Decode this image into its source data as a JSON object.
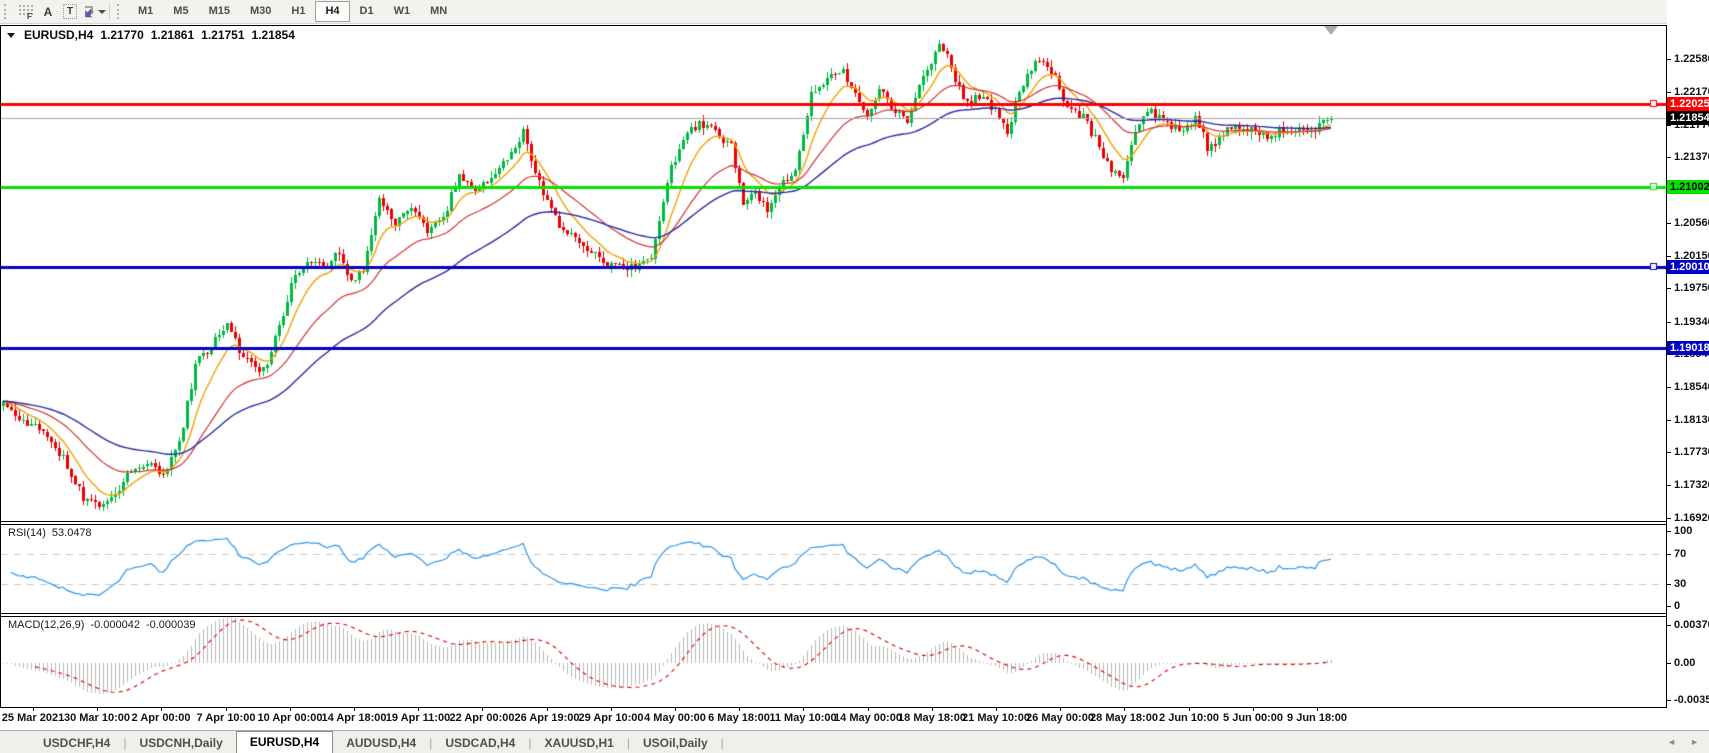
{
  "toolbar": {
    "tools": [
      {
        "id": "fibonacci",
        "glyph": "F"
      },
      {
        "id": "text",
        "glyph": "A"
      },
      {
        "id": "text-label",
        "glyph": "T"
      },
      {
        "id": "arrows",
        "glyph": "arrows"
      }
    ],
    "timeframes": [
      "M1",
      "M5",
      "M15",
      "M30",
      "H1",
      "H4",
      "D1",
      "W1",
      "MN"
    ],
    "active_timeframe": "H4"
  },
  "chart_header": {
    "symbol": "EURUSD,H4",
    "open": "1.21770",
    "high": "1.21861",
    "low": "1.21751",
    "close": "1.21854"
  },
  "price_axis": {
    "ticks": [
      "1.22580",
      "1.22170",
      "1.21770",
      "1.21370",
      "1.20960",
      "1.20560",
      "1.20150",
      "1.19750",
      "1.19340",
      "1.18940",
      "1.18540",
      "1.18130",
      "1.17730",
      "1.17320",
      "1.16920"
    ]
  },
  "tabs": {
    "items": [
      "USDCHF,H4",
      "USDCNH,Daily",
      "EURUSD,H4",
      "AUDUSD,H4",
      "USDCAD,H4",
      "XAUUSD,H1",
      "USOil,Daily"
    ],
    "active": "EURUSD,H4",
    "scroll_left": "◄",
    "scroll_right": "►"
  },
  "chart_data": {
    "type": "candlestick",
    "symbol": "EURUSD",
    "period": "H4",
    "title": "EURUSD,H4 1.21770 1.21861 1.21751 1.21854",
    "y_range": {
      "top": 1.2299,
      "bottom": 1.1688
    },
    "x_labels": [
      "25 Mar 2021",
      "30 Mar 10:00",
      "2 Apr 00:00",
      "7 Apr 10:00",
      "10 Apr 00:00",
      "14 Apr 18:00",
      "19 Apr 11:00",
      "22 Apr 00:00",
      "26 Apr 19:00",
      "29 Apr 10:00",
      "4 May 00:00",
      "6 May 18:00",
      "11 May 10:00",
      "14 May 00:00",
      "18 May 18:00",
      "21 May 10:00",
      "26 May 00:00",
      "28 May 18:00",
      "2 Jun 10:00",
      "5 Jun 00:00",
      "9 Jun 18:00"
    ],
    "bars": 333,
    "bar_spacing": 4,
    "first_bar_x": 2,
    "seed": 97,
    "close_noise": 0.00055,
    "wick_noise": 0.00085,
    "up_color": "#00B943",
    "down_color": "#ED0000",
    "price_path": [
      [
        0,
        1.1832
      ],
      [
        5,
        1.1808
      ],
      [
        10,
        1.18
      ],
      [
        15,
        1.1765
      ],
      [
        20,
        1.1716
      ],
      [
        24,
        1.1703
      ],
      [
        28,
        1.1722
      ],
      [
        32,
        1.1752
      ],
      [
        36,
        1.1758
      ],
      [
        40,
        1.1744
      ],
      [
        44,
        1.1782
      ],
      [
        48,
        1.188
      ],
      [
        53,
        1.1912
      ],
      [
        56,
        1.193
      ],
      [
        60,
        1.1888
      ],
      [
        65,
        1.1873
      ],
      [
        68,
        1.1912
      ],
      [
        72,
        1.1978
      ],
      [
        76,
        1.2012
      ],
      [
        80,
        1.2
      ],
      [
        84,
        1.2018
      ],
      [
        87,
        1.198
      ],
      [
        90,
        1.1998
      ],
      [
        94,
        1.2085
      ],
      [
        98,
        1.2058
      ],
      [
        102,
        1.2075
      ],
      [
        106,
        1.2046
      ],
      [
        110,
        1.2062
      ],
      [
        114,
        1.2118
      ],
      [
        118,
        1.2094
      ],
      [
        122,
        1.2108
      ],
      [
        126,
        1.2136
      ],
      [
        130,
        1.217
      ],
      [
        133,
        1.212
      ],
      [
        136,
        1.2082
      ],
      [
        140,
        1.2046
      ],
      [
        146,
        1.2022
      ],
      [
        152,
        1.2003
      ],
      [
        157,
        1.2001
      ],
      [
        162,
        1.2016
      ],
      [
        166,
        1.211
      ],
      [
        170,
        1.216
      ],
      [
        174,
        1.218
      ],
      [
        178,
        1.2168
      ],
      [
        182,
        1.2152
      ],
      [
        185,
        1.2076
      ],
      [
        188,
        1.2092
      ],
      [
        191,
        1.2072
      ],
      [
        194,
        1.2106
      ],
      [
        198,
        1.2122
      ],
      [
        202,
        1.2215
      ],
      [
        206,
        1.2236
      ],
      [
        210,
        1.2242
      ],
      [
        214,
        1.2208
      ],
      [
        216,
        1.2184
      ],
      [
        219,
        1.222
      ],
      [
        222,
        1.22
      ],
      [
        226,
        1.2178
      ],
      [
        230,
        1.224
      ],
      [
        234,
        1.2274
      ],
      [
        237,
        1.225
      ],
      [
        240,
        1.2206
      ],
      [
        244,
        1.2212
      ],
      [
        248,
        1.2196
      ],
      [
        251,
        1.2166
      ],
      [
        254,
        1.222
      ],
      [
        258,
        1.2258
      ],
      [
        262,
        1.2244
      ],
      [
        266,
        1.22
      ],
      [
        270,
        1.2186
      ],
      [
        274,
        1.215
      ],
      [
        277,
        1.2118
      ],
      [
        280,
        1.2114
      ],
      [
        283,
        1.2165
      ],
      [
        286,
        1.2196
      ],
      [
        290,
        1.218
      ],
      [
        294,
        1.217
      ],
      [
        298,
        1.2186
      ],
      [
        301,
        1.215
      ],
      [
        304,
        1.216
      ],
      [
        308,
        1.2178
      ],
      [
        312,
        1.217
      ],
      [
        316,
        1.2162
      ],
      [
        320,
        1.2172
      ],
      [
        324,
        1.2166
      ],
      [
        328,
        1.2172
      ],
      [
        332,
        1.21854
      ]
    ],
    "moving_averages": [
      {
        "period": 9,
        "color": "#F2A100",
        "width": 1.4
      },
      {
        "period": 26,
        "color": "#D23434",
        "width": 1.2
      },
      {
        "period": 56,
        "color": "#2B2BA6",
        "width": 1.4
      }
    ],
    "h_lines": [
      {
        "price": 1.22025,
        "label": "1.22025",
        "color": "#FE0000",
        "text_color": "#ffffff",
        "width": 3,
        "square": true
      },
      {
        "price": 1.21002,
        "label": "1.21002",
        "color": "#00E400",
        "text_color": "#000000",
        "width": 3,
        "square": true
      },
      {
        "price": 1.2001,
        "label": "1.20010",
        "color": "#0000C8",
        "text_color": "#ffffff",
        "width": 3,
        "square": true
      },
      {
        "price": 1.19018,
        "label": "1.19018",
        "color": "#0000C8",
        "text_color": "#ffffff",
        "width": 3,
        "square": false
      }
    ],
    "bid_line": {
      "price": 1.21854,
      "label": "1.21854",
      "color": "#A9A9A9",
      "tag_bg": "#000000",
      "text_color": "#ffffff"
    },
    "rsi": {
      "name": "RSI(14)",
      "value_text": "53.0478",
      "value": 53.0478,
      "period": 14,
      "color": "#2F96E8",
      "level_dash_color": "#C9C9C9",
      "axis_labels": [
        "100",
        "70",
        "30",
        "0"
      ],
      "axis_values": [
        100,
        70,
        30,
        0
      ],
      "dashed_levels": [
        70,
        30
      ]
    },
    "macd": {
      "name": "MACD(12,26,9)",
      "value_text": "-0.000042",
      "signal_text": "-0.000039",
      "fast": 12,
      "slow": 26,
      "signal_period": 9,
      "hist_color": "#B9B9B9",
      "signal_color": "#DF0000",
      "axis_labels": [
        "0.003701",
        "0.00",
        "-0.003572"
      ],
      "axis_values": [
        0.003701,
        0,
        -0.003572
      ]
    }
  }
}
